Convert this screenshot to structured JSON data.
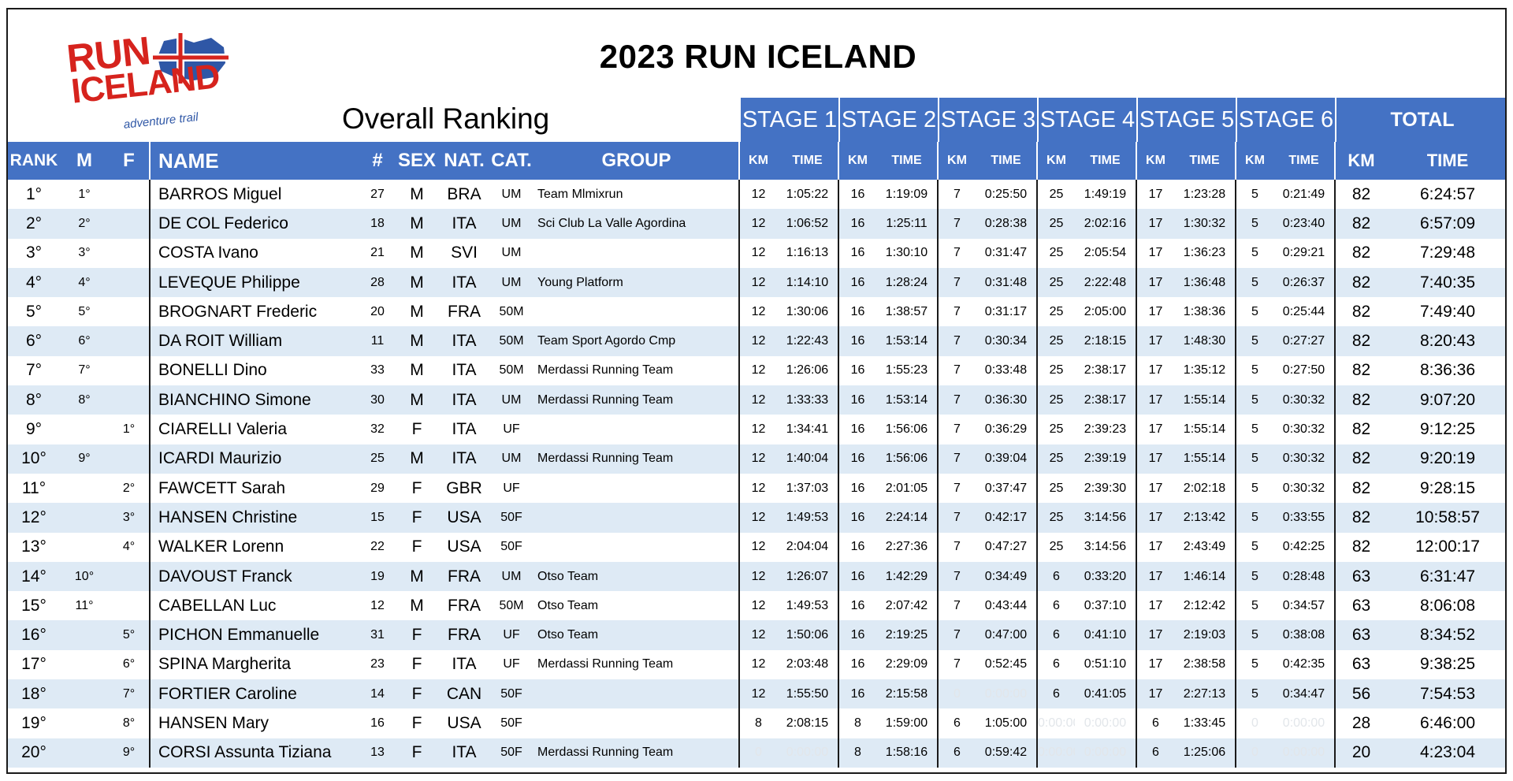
{
  "logo": {
    "line1": "RUN",
    "line2": "ICELAND",
    "tagline": "adventure trail"
  },
  "title": "2023  RUN ICELAND",
  "subtitle": "Overall Ranking",
  "stages": [
    "STAGE 1",
    "STAGE 2",
    "STAGE 3",
    "STAGE 4",
    "STAGE 5",
    "STAGE 6"
  ],
  "total_label": "TOTAL",
  "columns": {
    "rank": "RANK",
    "m": "M",
    "f": "F",
    "name": "NAME",
    "num": "#",
    "sex": "SEX",
    "nat": "NAT.",
    "cat": "CAT.",
    "group": "GROUP",
    "km": "KM",
    "time": "TIME"
  },
  "rows": [
    {
      "rank": "1°",
      "m": "1°",
      "f": "",
      "name": "BARROS Miguel",
      "num": "27",
      "sex": "M",
      "nat": "BRA",
      "cat": "UM",
      "group": "Team Mlmixrun",
      "stages": [
        [
          "12",
          "1:05:22"
        ],
        [
          "16",
          "1:19:09"
        ],
        [
          "7",
          "0:25:50"
        ],
        [
          "25",
          "1:49:19"
        ],
        [
          "17",
          "1:23:28"
        ],
        [
          "5",
          "0:21:49"
        ]
      ],
      "total_km": "82",
      "total_time": "6:24:57"
    },
    {
      "rank": "2°",
      "m": "2°",
      "f": "",
      "name": "DE COL Federico",
      "num": "18",
      "sex": "M",
      "nat": "ITA",
      "cat": "UM",
      "group": "Sci Club La Valle Agordina",
      "stages": [
        [
          "12",
          "1:06:52"
        ],
        [
          "16",
          "1:25:11"
        ],
        [
          "7",
          "0:28:38"
        ],
        [
          "25",
          "2:02:16"
        ],
        [
          "17",
          "1:30:32"
        ],
        [
          "5",
          "0:23:40"
        ]
      ],
      "total_km": "82",
      "total_time": "6:57:09"
    },
    {
      "rank": "3°",
      "m": "3°",
      "f": "",
      "name": "COSTA Ivano",
      "num": "21",
      "sex": "M",
      "nat": "SVI",
      "cat": "UM",
      "group": "",
      "stages": [
        [
          "12",
          "1:16:13"
        ],
        [
          "16",
          "1:30:10"
        ],
        [
          "7",
          "0:31:47"
        ],
        [
          "25",
          "2:05:54"
        ],
        [
          "17",
          "1:36:23"
        ],
        [
          "5",
          "0:29:21"
        ]
      ],
      "total_km": "82",
      "total_time": "7:29:48"
    },
    {
      "rank": "4°",
      "m": "4°",
      "f": "",
      "name": "LEVEQUE Philippe",
      "num": "28",
      "sex": "M",
      "nat": "ITA",
      "cat": "UM",
      "group": "Young Platform",
      "stages": [
        [
          "12",
          "1:14:10"
        ],
        [
          "16",
          "1:28:24"
        ],
        [
          "7",
          "0:31:48"
        ],
        [
          "25",
          "2:22:48"
        ],
        [
          "17",
          "1:36:48"
        ],
        [
          "5",
          "0:26:37"
        ]
      ],
      "total_km": "82",
      "total_time": "7:40:35"
    },
    {
      "rank": "5°",
      "m": "5°",
      "f": "",
      "name": "BROGNART Frederic",
      "num": "20",
      "sex": "M",
      "nat": "FRA",
      "cat": "50M",
      "group": "",
      "stages": [
        [
          "12",
          "1:30:06"
        ],
        [
          "16",
          "1:38:57"
        ],
        [
          "7",
          "0:31:17"
        ],
        [
          "25",
          "2:05:00"
        ],
        [
          "17",
          "1:38:36"
        ],
        [
          "5",
          "0:25:44"
        ]
      ],
      "total_km": "82",
      "total_time": "7:49:40"
    },
    {
      "rank": "6°",
      "m": "6°",
      "f": "",
      "name": "DA ROIT  William",
      "num": "11",
      "sex": "M",
      "nat": "ITA",
      "cat": "50M",
      "group": "Team Sport Agordo Cmp",
      "stages": [
        [
          "12",
          "1:22:43"
        ],
        [
          "16",
          "1:53:14"
        ],
        [
          "7",
          "0:30:34"
        ],
        [
          "25",
          "2:18:15"
        ],
        [
          "17",
          "1:48:30"
        ],
        [
          "5",
          "0:27:27"
        ]
      ],
      "total_km": "82",
      "total_time": "8:20:43"
    },
    {
      "rank": "7°",
      "m": "7°",
      "f": "",
      "name": "BONELLI Dino",
      "num": "33",
      "sex": "M",
      "nat": "ITA",
      "cat": "50M",
      "group": "Merdassi Running Team",
      "stages": [
        [
          "12",
          "1:26:06"
        ],
        [
          "16",
          "1:55:23"
        ],
        [
          "7",
          "0:33:48"
        ],
        [
          "25",
          "2:38:17"
        ],
        [
          "17",
          "1:35:12"
        ],
        [
          "5",
          "0:27:50"
        ]
      ],
      "total_km": "82",
      "total_time": "8:36:36"
    },
    {
      "rank": "8°",
      "m": "8°",
      "f": "",
      "name": "BIANCHINO Simone",
      "num": "30",
      "sex": "M",
      "nat": "ITA",
      "cat": "UM",
      "group": "Merdassi Running Team",
      "stages": [
        [
          "12",
          "1:33:33"
        ],
        [
          "16",
          "1:53:14"
        ],
        [
          "7",
          "0:36:30"
        ],
        [
          "25",
          "2:38:17"
        ],
        [
          "17",
          "1:55:14"
        ],
        [
          "5",
          "0:30:32"
        ]
      ],
      "total_km": "82",
      "total_time": "9:07:20"
    },
    {
      "rank": "9°",
      "m": "",
      "f": "1°",
      "name": "CIARELLI Valeria",
      "num": "32",
      "sex": "F",
      "nat": "ITA",
      "cat": "UF",
      "group": "",
      "stages": [
        [
          "12",
          "1:34:41"
        ],
        [
          "16",
          "1:56:06"
        ],
        [
          "7",
          "0:36:29"
        ],
        [
          "25",
          "2:39:23"
        ],
        [
          "17",
          "1:55:14"
        ],
        [
          "5",
          "0:30:32"
        ]
      ],
      "total_km": "82",
      "total_time": "9:12:25"
    },
    {
      "rank": "10°",
      "m": "9°",
      "f": "",
      "name": "ICARDI Maurizio",
      "num": "25",
      "sex": "M",
      "nat": "ITA",
      "cat": "UM",
      "group": "Merdassi Running Team",
      "stages": [
        [
          "12",
          "1:40:04"
        ],
        [
          "16",
          "1:56:06"
        ],
        [
          "7",
          "0:39:04"
        ],
        [
          "25",
          "2:39:19"
        ],
        [
          "17",
          "1:55:14"
        ],
        [
          "5",
          "0:30:32"
        ]
      ],
      "total_km": "82",
      "total_time": "9:20:19"
    },
    {
      "rank": "11°",
      "m": "",
      "f": "2°",
      "name": "FAWCETT Sarah",
      "num": "29",
      "sex": "F",
      "nat": "GBR",
      "cat": "UF",
      "group": "",
      "stages": [
        [
          "12",
          "1:37:03"
        ],
        [
          "16",
          "2:01:05"
        ],
        [
          "7",
          "0:37:47"
        ],
        [
          "25",
          "2:39:30"
        ],
        [
          "17",
          "2:02:18"
        ],
        [
          "5",
          "0:30:32"
        ]
      ],
      "total_km": "82",
      "total_time": "9:28:15"
    },
    {
      "rank": "12°",
      "m": "",
      "f": "3°",
      "name": "HANSEN Christine",
      "num": "15",
      "sex": "F",
      "nat": "USA",
      "cat": "50F",
      "group": "",
      "stages": [
        [
          "12",
          "1:49:53"
        ],
        [
          "16",
          "2:24:14"
        ],
        [
          "7",
          "0:42:17"
        ],
        [
          "25",
          "3:14:56"
        ],
        [
          "17",
          "2:13:42"
        ],
        [
          "5",
          "0:33:55"
        ]
      ],
      "total_km": "82",
      "total_time": "10:58:57"
    },
    {
      "rank": "13°",
      "m": "",
      "f": "4°",
      "name": "WALKER Lorenn",
      "num": "22",
      "sex": "F",
      "nat": "USA",
      "cat": "50F",
      "group": "",
      "stages": [
        [
          "12",
          "2:04:04"
        ],
        [
          "16",
          "2:27:36"
        ],
        [
          "7",
          "0:47:27"
        ],
        [
          "25",
          "3:14:56"
        ],
        [
          "17",
          "2:43:49"
        ],
        [
          "5",
          "0:42:25"
        ]
      ],
      "total_km": "82",
      "total_time": "12:00:17"
    },
    {
      "rank": "14°",
      "m": "10°",
      "f": "",
      "name": "DAVOUST  Franck",
      "num": "19",
      "sex": "M",
      "nat": "FRA",
      "cat": "UM",
      "group": "Otso Team",
      "stages": [
        [
          "12",
          "1:26:07"
        ],
        [
          "16",
          "1:42:29"
        ],
        [
          "7",
          "0:34:49"
        ],
        [
          "6",
          "0:33:20"
        ],
        [
          "17",
          "1:46:14"
        ],
        [
          "5",
          "0:28:48"
        ]
      ],
      "total_km": "63",
      "total_time": "6:31:47"
    },
    {
      "rank": "15°",
      "m": "11°",
      "f": "",
      "name": "CABELLAN Luc",
      "num": "12",
      "sex": "M",
      "nat": "FRA",
      "cat": "50M",
      "group": "Otso Team",
      "stages": [
        [
          "12",
          "1:49:53"
        ],
        [
          "16",
          "2:07:42"
        ],
        [
          "7",
          "0:43:44"
        ],
        [
          "6",
          "0:37:10"
        ],
        [
          "17",
          "2:12:42"
        ],
        [
          "5",
          "0:34:57"
        ]
      ],
      "total_km": "63",
      "total_time": "8:06:08"
    },
    {
      "rank": "16°",
      "m": "",
      "f": "5°",
      "name": "PICHON Emmanuelle",
      "num": "31",
      "sex": "F",
      "nat": "FRA",
      "cat": "UF",
      "group": "Otso Team",
      "stages": [
        [
          "12",
          "1:50:06"
        ],
        [
          "16",
          "2:19:25"
        ],
        [
          "7",
          "0:47:00"
        ],
        [
          "6",
          "0:41:10"
        ],
        [
          "17",
          "2:19:03"
        ],
        [
          "5",
          "0:38:08"
        ]
      ],
      "total_km": "63",
      "total_time": "8:34:52"
    },
    {
      "rank": "17°",
      "m": "",
      "f": "6°",
      "name": "SPINA Margherita",
      "num": "23",
      "sex": "F",
      "nat": "ITA",
      "cat": "UF",
      "group": "Merdassi Running Team",
      "stages": [
        [
          "12",
          "2:03:48"
        ],
        [
          "16",
          "2:29:09"
        ],
        [
          "7",
          "0:52:45"
        ],
        [
          "6",
          "0:51:10"
        ],
        [
          "17",
          "2:38:58"
        ],
        [
          "5",
          "0:42:35"
        ]
      ],
      "total_km": "63",
      "total_time": "9:38:25"
    },
    {
      "rank": "18°",
      "m": "",
      "f": "7°",
      "name": "FORTIER Caroline",
      "num": "14",
      "sex": "F",
      "nat": "CAN",
      "cat": "50F",
      "group": "",
      "stages": [
        [
          "12",
          "1:55:50"
        ],
        [
          "16",
          "2:15:58"
        ],
        [
          "0",
          "0:00:00"
        ],
        [
          "6",
          "0:41:05"
        ],
        [
          "17",
          "2:27:13"
        ],
        [
          "5",
          "0:34:47"
        ]
      ],
      "total_km": "56",
      "total_time": "7:54:53"
    },
    {
      "rank": "19°",
      "m": "",
      "f": "8°",
      "name": "HANSEN Mary",
      "num": "16",
      "sex": "F",
      "nat": "USA",
      "cat": "50F",
      "group": "",
      "stages": [
        [
          "8",
          "2:08:15"
        ],
        [
          "8",
          "1:59:00"
        ],
        [
          "6",
          "1:05:00"
        ],
        [
          "0:00:00",
          "0:00:00"
        ],
        [
          "6",
          "1:33:45"
        ],
        [
          "0",
          "0:00:00"
        ]
      ],
      "total_km": "28",
      "total_time": "6:46:00"
    },
    {
      "rank": "20°",
      "m": "",
      "f": "9°",
      "name": "CORSI Assunta Tiziana",
      "num": "13",
      "sex": "F",
      "nat": "ITA",
      "cat": "50F",
      "group": "Merdassi Running Team",
      "stages": [
        [
          "0",
          "0:00:00"
        ],
        [
          "8",
          "1:58:16"
        ],
        [
          "6",
          "0:59:42"
        ],
        [
          "0:00:00",
          "0:00:00"
        ],
        [
          "6",
          "1:25:06"
        ],
        [
          "0",
          "0:00:00"
        ]
      ],
      "total_km": "20",
      "total_time": "4:23:04"
    }
  ]
}
